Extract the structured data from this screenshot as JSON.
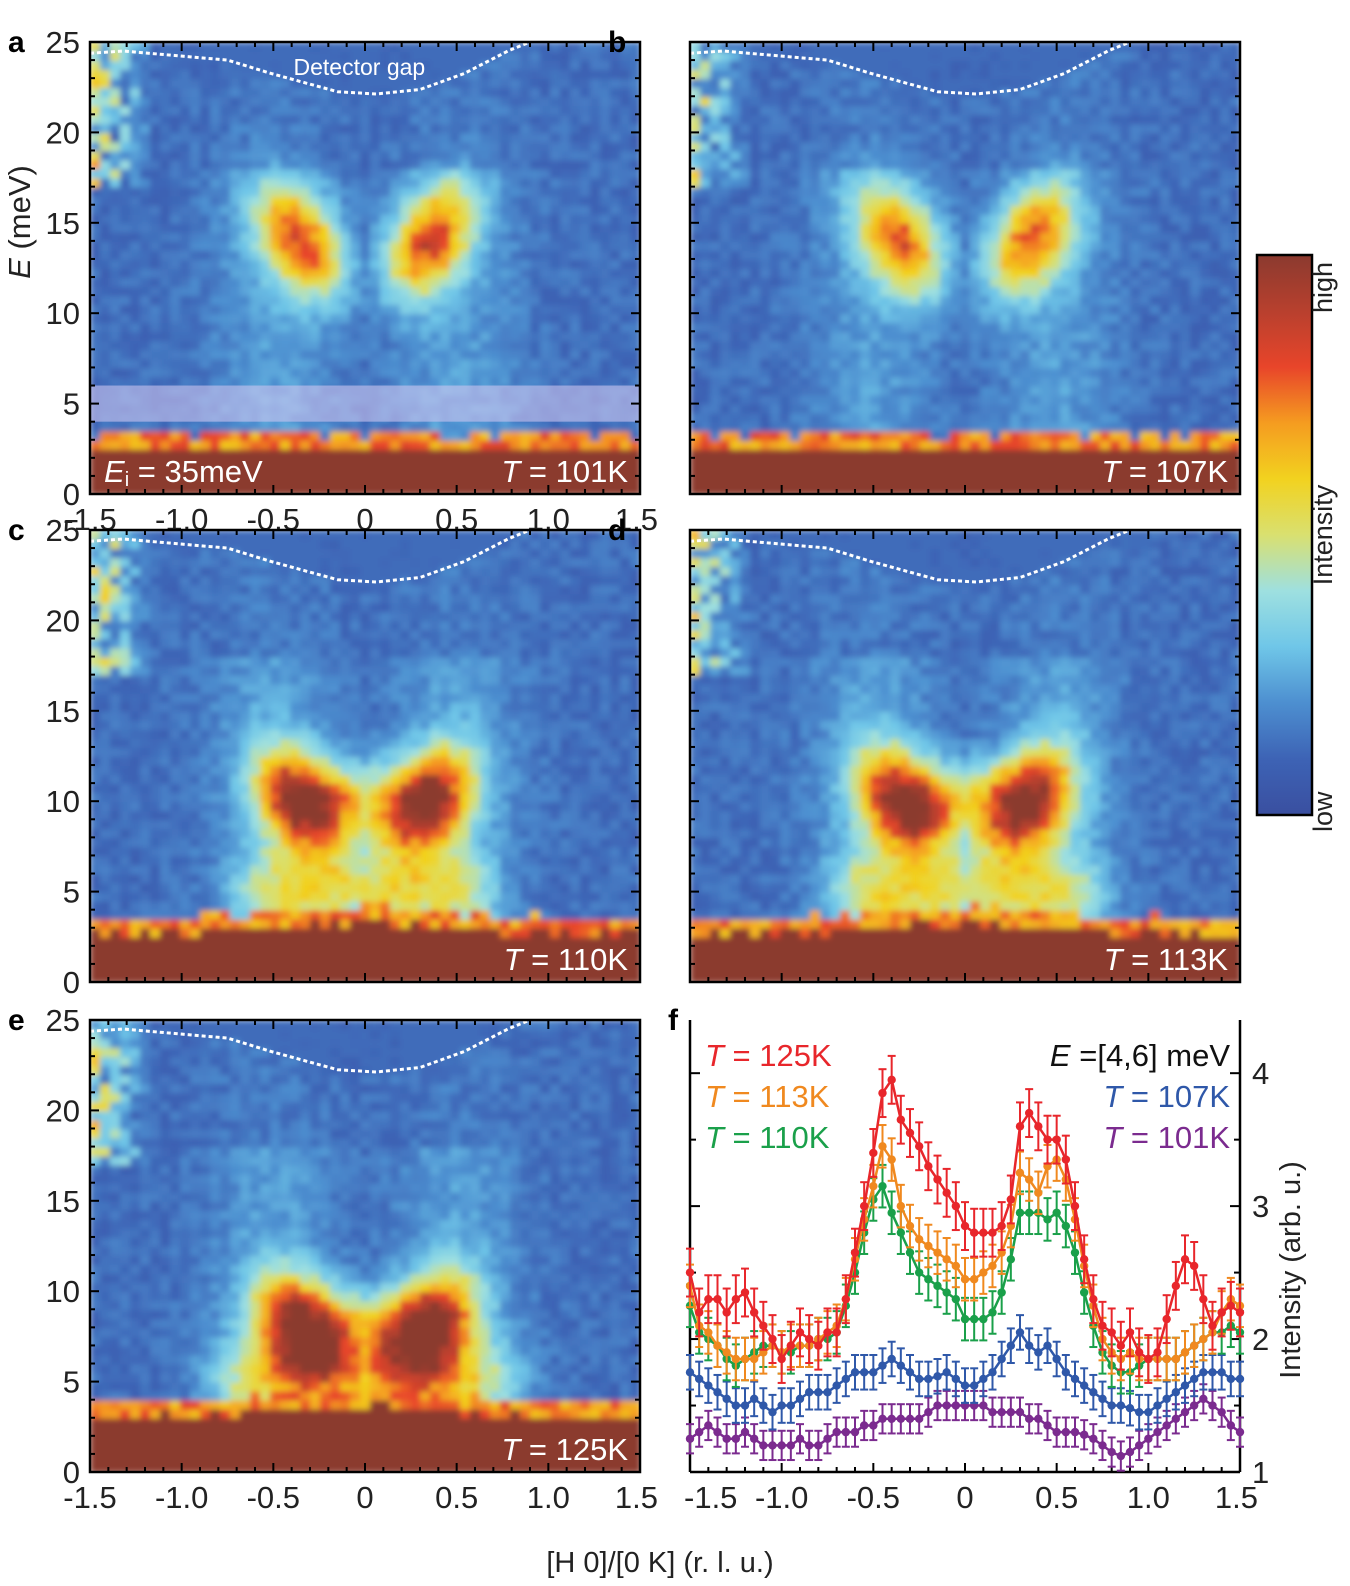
{
  "figure": {
    "shared_xlabel": "[H 0]/[0 K] (r. l. u.)",
    "detector_gap_label": "Detector gap"
  },
  "colorbar": {
    "label": "Intensity",
    "high_label": "high",
    "low_label": "low",
    "colors": [
      "#3a4fa0",
      "#3d63b5",
      "#4d8fd0",
      "#6fc6e8",
      "#9ee0e0",
      "#d9e070",
      "#f2d21f",
      "#f59c20",
      "#e8452a",
      "#b8402e",
      "#8b3a2f"
    ]
  },
  "chart_data": [
    {
      "type": "heatmap",
      "panel": "a",
      "ylabel_var": "E",
      "ylabel_unit": " (meV)",
      "xlim": [
        -1.5,
        1.5
      ],
      "ylim": [
        0,
        25
      ],
      "yticks": [
        0,
        5,
        10,
        15,
        20,
        25
      ],
      "xticks": [
        -1.5,
        -1.0,
        -0.5,
        0,
        0.5,
        1.0,
        1.5
      ],
      "ei_label": "E",
      "ei_sub": "i",
      "ei_value": " = 35meV",
      "temp_var": "T",
      "temp_value": " = 101K",
      "temperature_K": 101,
      "integration_band": [
        4,
        6
      ],
      "features": {
        "upper_center": 14,
        "upper_width": 0.65,
        "lower_center": 0,
        "lower_width": 0,
        "floor": 2.3,
        "corner": 1.0
      }
    },
    {
      "type": "heatmap",
      "panel": "b",
      "xlim": [
        -1.5,
        1.5
      ],
      "ylim": [
        0,
        25
      ],
      "temp_var": "T",
      "temp_value": " = 107K",
      "temperature_K": 107,
      "features": {
        "upper_center": 14,
        "upper_width": 0.6,
        "lower_center": 0,
        "lower_width": 0,
        "floor": 2.3,
        "corner": 0.85
      }
    },
    {
      "type": "heatmap",
      "panel": "c",
      "xlim": [
        -1.5,
        1.5
      ],
      "ylim": [
        0,
        25
      ],
      "yticks": [
        0,
        5,
        10,
        15,
        20,
        25
      ],
      "temp_var": "T",
      "temp_value": " = 110K",
      "temperature_K": 110,
      "features": {
        "upper_center": 10,
        "upper_width": 0.7,
        "lower_center": 5,
        "lower_width": 0.7,
        "floor": 2.6,
        "corner": 1.0
      }
    },
    {
      "type": "heatmap",
      "panel": "d",
      "xlim": [
        -1.5,
        1.5
      ],
      "ylim": [
        0,
        25
      ],
      "temp_var": "T",
      "temp_value": " = 113K",
      "temperature_K": 113,
      "features": {
        "upper_center": 10,
        "upper_width": 0.7,
        "lower_center": 5,
        "lower_width": 0.75,
        "floor": 2.6,
        "corner": 0.9
      }
    },
    {
      "type": "heatmap",
      "panel": "e",
      "xlim": [
        -1.5,
        1.5
      ],
      "ylim": [
        0,
        25
      ],
      "yticks": [
        0,
        5,
        10,
        15,
        20,
        25
      ],
      "xticks": [
        -1.5,
        -1.0,
        -0.5,
        0,
        0.5,
        1.0,
        1.5
      ],
      "temp_var": "T",
      "temp_value": " = 125K",
      "temperature_K": 125,
      "features": {
        "upper_center": 8,
        "upper_width": 0.75,
        "lower_center": 5,
        "lower_width": 0.85,
        "floor": 3.0,
        "corner": 1.0
      }
    },
    {
      "type": "line",
      "panel": "f",
      "ylabel": "Intensity (arb. u.)",
      "energy_label_var": "E",
      "energy_label_value": " =[4,6] meV",
      "xlim": [
        -1.5,
        1.5
      ],
      "ylim": [
        1,
        4.4
      ],
      "xticks": [
        -1.5,
        -1.0,
        -0.5,
        0,
        0.5,
        1.0,
        1.5
      ],
      "yticks": [
        1,
        2,
        3,
        4
      ],
      "x": [
        -1.5,
        -1.45,
        -1.4,
        -1.35,
        -1.3,
        -1.25,
        -1.2,
        -1.15,
        -1.1,
        -1.05,
        -1.0,
        -0.95,
        -0.9,
        -0.85,
        -0.8,
        -0.75,
        -0.7,
        -0.65,
        -0.6,
        -0.55,
        -0.5,
        -0.45,
        -0.4,
        -0.35,
        -0.3,
        -0.25,
        -0.2,
        -0.15,
        -0.1,
        -0.05,
        0.0,
        0.05,
        0.1,
        0.15,
        0.2,
        0.25,
        0.3,
        0.35,
        0.4,
        0.45,
        0.5,
        0.55,
        0.6,
        0.65,
        0.7,
        0.75,
        0.8,
        0.85,
        0.9,
        0.95,
        1.0,
        1.05,
        1.1,
        1.15,
        1.2,
        1.25,
        1.3,
        1.35,
        1.4,
        1.45,
        1.5
      ],
      "series": [
        {
          "name": "T = 125K",
          "var": "T",
          "value": " = 125K",
          "color": "#e8262b",
          "error": 0.18,
          "values": [
            2.5,
            2.2,
            2.3,
            2.3,
            2.2,
            2.3,
            2.35,
            2.2,
            2.1,
            2.0,
            1.85,
            1.95,
            2.05,
            2.0,
            1.95,
            2.05,
            2.05,
            2.3,
            2.65,
            3.0,
            3.4,
            3.85,
            3.95,
            3.65,
            3.55,
            3.45,
            3.3,
            3.2,
            3.1,
            3.0,
            2.85,
            2.8,
            2.8,
            2.8,
            2.85,
            3.05,
            3.6,
            3.7,
            3.6,
            3.5,
            3.5,
            3.35,
            3.0,
            2.6,
            2.3,
            2.1,
            2.05,
            1.95,
            2.05,
            1.9,
            1.85,
            1.9,
            2.15,
            2.4,
            2.6,
            2.55,
            2.3,
            2.1,
            2.2,
            2.25,
            2.2
          ]
        },
        {
          "name": "T = 113K",
          "var": "T",
          "value": " = 113K",
          "color": "#f0891f",
          "error": 0.16,
          "values": [
            2.4,
            2.1,
            2.05,
            1.95,
            1.9,
            1.85,
            1.85,
            1.85,
            1.9,
            1.95,
            1.9,
            1.95,
            1.95,
            1.95,
            2.0,
            2.05,
            2.1,
            2.3,
            2.6,
            2.9,
            3.15,
            3.45,
            3.35,
            3.0,
            2.85,
            2.75,
            2.7,
            2.65,
            2.6,
            2.55,
            2.45,
            2.45,
            2.5,
            2.55,
            2.65,
            2.85,
            3.25,
            3.2,
            3.1,
            3.3,
            3.35,
            3.2,
            2.9,
            2.55,
            2.25,
            2.0,
            1.9,
            1.85,
            1.9,
            1.85,
            1.85,
            1.85,
            1.85,
            1.85,
            1.9,
            1.95,
            2.0,
            2.05,
            2.2,
            2.3,
            2.25
          ]
        },
        {
          "name": "T = 110K",
          "var": "T",
          "value": " = 110K",
          "color": "#1aa04a",
          "error": 0.16,
          "values": [
            2.25,
            2.05,
            2.0,
            1.95,
            1.85,
            1.8,
            1.85,
            1.9,
            1.95,
            1.95,
            1.9,
            1.9,
            1.95,
            1.95,
            2.0,
            2.0,
            2.05,
            2.25,
            2.5,
            2.8,
            3.05,
            3.15,
            2.95,
            2.8,
            2.65,
            2.5,
            2.45,
            2.4,
            2.35,
            2.3,
            2.15,
            2.15,
            2.15,
            2.2,
            2.35,
            2.6,
            2.95,
            2.95,
            2.95,
            2.9,
            2.95,
            2.85,
            2.65,
            2.35,
            2.1,
            1.9,
            1.8,
            1.75,
            1.75,
            1.8,
            1.85,
            1.85,
            1.85,
            1.85,
            1.9,
            1.95,
            2.0,
            2.05,
            2.05,
            2.1,
            2.05
          ]
        },
        {
          "name": "T = 107K",
          "var": "T",
          "value": " = 107K",
          "color": "#2f58a9",
          "error": 0.13,
          "values": [
            1.75,
            1.7,
            1.65,
            1.6,
            1.55,
            1.5,
            1.5,
            1.55,
            1.5,
            1.45,
            1.5,
            1.5,
            1.55,
            1.6,
            1.6,
            1.6,
            1.65,
            1.7,
            1.75,
            1.75,
            1.75,
            1.8,
            1.85,
            1.8,
            1.75,
            1.7,
            1.7,
            1.72,
            1.75,
            1.7,
            1.65,
            1.65,
            1.7,
            1.75,
            1.85,
            1.95,
            2.05,
            1.95,
            1.9,
            1.95,
            1.85,
            1.75,
            1.7,
            1.65,
            1.6,
            1.55,
            1.5,
            1.5,
            1.48,
            1.45,
            1.45,
            1.5,
            1.55,
            1.6,
            1.65,
            1.7,
            1.75,
            1.75,
            1.75,
            1.7,
            1.7
          ]
        },
        {
          "name": "T = 101K",
          "var": "T",
          "value": " = 101K",
          "color": "#7b2b8f",
          "error": 0.11,
          "values": [
            1.25,
            1.3,
            1.35,
            1.3,
            1.25,
            1.25,
            1.3,
            1.25,
            1.2,
            1.2,
            1.2,
            1.2,
            1.25,
            1.2,
            1.2,
            1.25,
            1.3,
            1.3,
            1.3,
            1.35,
            1.35,
            1.4,
            1.4,
            1.4,
            1.4,
            1.4,
            1.45,
            1.5,
            1.5,
            1.5,
            1.5,
            1.5,
            1.5,
            1.45,
            1.45,
            1.45,
            1.45,
            1.4,
            1.4,
            1.35,
            1.3,
            1.3,
            1.3,
            1.28,
            1.25,
            1.2,
            1.15,
            1.12,
            1.15,
            1.2,
            1.25,
            1.3,
            1.35,
            1.4,
            1.45,
            1.5,
            1.55,
            1.5,
            1.45,
            1.35,
            1.3
          ]
        }
      ]
    }
  ]
}
